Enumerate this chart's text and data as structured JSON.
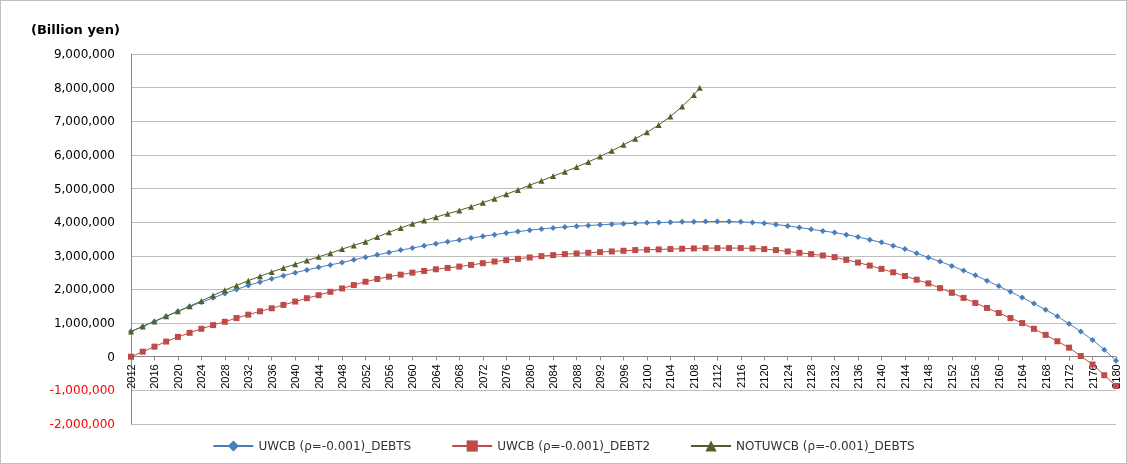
{
  "chart_data": {
    "type": "line",
    "ylabel": "(Billion yen)",
    "xlim": [
      2012,
      2180
    ],
    "xticks": [
      2012,
      2016,
      2020,
      2024,
      2028,
      2032,
      2036,
      2040,
      2044,
      2048,
      2052,
      2056,
      2060,
      2064,
      2068,
      2072,
      2076,
      2080,
      2084,
      2088,
      2092,
      2096,
      2100,
      2104,
      2108,
      2112,
      2116,
      2120,
      2124,
      2128,
      2132,
      2136,
      2140,
      2144,
      2148,
      2152,
      2156,
      2160,
      2164,
      2168,
      2172,
      2176,
      2180
    ],
    "ylim": [
      -2000000,
      9000000
    ],
    "yticks": [
      {
        "value": -2000000,
        "label": "-2,000,000"
      },
      {
        "value": -1000000,
        "label": "-1,000,000"
      },
      {
        "value": 0,
        "label": "0"
      },
      {
        "value": 1000000,
        "label": "1,000,000"
      },
      {
        "value": 2000000,
        "label": "2,000,000"
      },
      {
        "value": 3000000,
        "label": "3,000,000"
      },
      {
        "value": 4000000,
        "label": "4,000,000"
      },
      {
        "value": 5000000,
        "label": "5,000,000"
      },
      {
        "value": 6000000,
        "label": "6,000,000"
      },
      {
        "value": 7000000,
        "label": "7,000,000"
      },
      {
        "value": 8000000,
        "label": "8,000,000"
      },
      {
        "value": 9000000,
        "label": "9,000,000"
      }
    ],
    "grid": "y",
    "legend": "bottom",
    "series": [
      {
        "name": "UWCB (ρ=-0.001)_DEBTS",
        "color": "#4a7ebb",
        "marker": "diamond",
        "x": [
          2012,
          2014,
          2016,
          2018,
          2020,
          2022,
          2024,
          2026,
          2028,
          2030,
          2032,
          2034,
          2036,
          2038,
          2040,
          2042,
          2044,
          2046,
          2048,
          2050,
          2052,
          2054,
          2056,
          2058,
          2060,
          2062,
          2064,
          2066,
          2068,
          2070,
          2072,
          2074,
          2076,
          2078,
          2080,
          2082,
          2084,
          2086,
          2088,
          2090,
          2092,
          2094,
          2096,
          2098,
          2100,
          2102,
          2104,
          2106,
          2108,
          2110,
          2112,
          2114,
          2116,
          2118,
          2120,
          2122,
          2124,
          2126,
          2128,
          2130,
          2132,
          2134,
          2136,
          2138,
          2140,
          2142,
          2144,
          2146,
          2148,
          2150,
          2152,
          2154,
          2156,
          2158,
          2160,
          2162,
          2164,
          2166,
          2168,
          2170,
          2172,
          2174,
          2176,
          2178,
          2180
        ],
        "values": [
          750000,
          900000,
          1050000,
          1200000,
          1350000,
          1490000,
          1620000,
          1750000,
          1880000,
          2000000,
          2120000,
          2220000,
          2320000,
          2410000,
          2500000,
          2580000,
          2660000,
          2730000,
          2800000,
          2880000,
          2960000,
          3030000,
          3100000,
          3170000,
          3230000,
          3300000,
          3360000,
          3420000,
          3470000,
          3530000,
          3580000,
          3630000,
          3680000,
          3720000,
          3760000,
          3800000,
          3830000,
          3860000,
          3880000,
          3900000,
          3920000,
          3940000,
          3950000,
          3970000,
          3980000,
          3990000,
          4000000,
          4010000,
          4010000,
          4020000,
          4020000,
          4020000,
          4010000,
          3990000,
          3970000,
          3930000,
          3890000,
          3840000,
          3790000,
          3740000,
          3690000,
          3630000,
          3560000,
          3480000,
          3400000,
          3300000,
          3200000,
          3080000,
          2950000,
          2830000,
          2700000,
          2560000,
          2420000,
          2260000,
          2100000,
          1930000,
          1760000,
          1580000,
          1400000,
          1200000,
          980000,
          750000,
          500000,
          210000,
          -120000
        ]
      },
      {
        "name": "UWCB (ρ=-0.001)_DEBT2",
        "color": "#be4b48",
        "marker": "square",
        "x": [
          2012,
          2014,
          2016,
          2018,
          2020,
          2022,
          2024,
          2026,
          2028,
          2030,
          2032,
          2034,
          2036,
          2038,
          2040,
          2042,
          2044,
          2046,
          2048,
          2050,
          2052,
          2054,
          2056,
          2058,
          2060,
          2062,
          2064,
          2066,
          2068,
          2070,
          2072,
          2074,
          2076,
          2078,
          2080,
          2082,
          2084,
          2086,
          2088,
          2090,
          2092,
          2094,
          2096,
          2098,
          2100,
          2102,
          2104,
          2106,
          2108,
          2110,
          2112,
          2114,
          2116,
          2118,
          2120,
          2122,
          2124,
          2126,
          2128,
          2130,
          2132,
          2134,
          2136,
          2138,
          2140,
          2142,
          2144,
          2146,
          2148,
          2150,
          2152,
          2154,
          2156,
          2158,
          2160,
          2162,
          2164,
          2166,
          2168,
          2170,
          2172,
          2174,
          2176,
          2178,
          2180
        ],
        "values": [
          0,
          150000,
          300000,
          450000,
          590000,
          710000,
          830000,
          940000,
          1040000,
          1150000,
          1250000,
          1350000,
          1440000,
          1540000,
          1640000,
          1740000,
          1830000,
          1930000,
          2030000,
          2130000,
          2230000,
          2310000,
          2380000,
          2440000,
          2500000,
          2550000,
          2600000,
          2640000,
          2680000,
          2730000,
          2780000,
          2830000,
          2870000,
          2910000,
          2950000,
          2990000,
          3020000,
          3050000,
          3070000,
          3090000,
          3110000,
          3130000,
          3150000,
          3170000,
          3180000,
          3190000,
          3200000,
          3210000,
          3220000,
          3230000,
          3230000,
          3230000,
          3230000,
          3220000,
          3200000,
          3170000,
          3130000,
          3090000,
          3050000,
          3010000,
          2960000,
          2880000,
          2800000,
          2710000,
          2610000,
          2510000,
          2400000,
          2290000,
          2180000,
          2040000,
          1900000,
          1750000,
          1600000,
          1450000,
          1300000,
          1150000,
          1000000,
          830000,
          650000,
          460000,
          270000,
          20000,
          -230000,
          -550000,
          -870000
        ]
      },
      {
        "name": "NOTUWCB (ρ=-0.001)_DEBTS",
        "color": "#4f6228",
        "marker": "triangle",
        "x": [
          2012,
          2014,
          2016,
          2018,
          2020,
          2022,
          2024,
          2026,
          2028,
          2030,
          2032,
          2034,
          2036,
          2038,
          2040,
          2042,
          2044,
          2046,
          2048,
          2050,
          2052,
          2054,
          2056,
          2058,
          2060,
          2062,
          2064,
          2066,
          2068,
          2070,
          2072,
          2074,
          2076,
          2078,
          2080,
          2082,
          2084,
          2086,
          2088,
          2090,
          2092,
          2094,
          2096,
          2098,
          2100,
          2102,
          2104,
          2106,
          2108,
          2109
        ],
        "values": [
          750000,
          900000,
          1050000,
          1200000,
          1350000,
          1500000,
          1660000,
          1820000,
          1980000,
          2120000,
          2260000,
          2390000,
          2520000,
          2640000,
          2750000,
          2860000,
          2970000,
          3080000,
          3200000,
          3310000,
          3420000,
          3560000,
          3700000,
          3830000,
          3950000,
          4050000,
          4150000,
          4250000,
          4350000,
          4460000,
          4580000,
          4700000,
          4830000,
          4960000,
          5100000,
          5230000,
          5370000,
          5500000,
          5640000,
          5790000,
          5950000,
          6120000,
          6300000,
          6480000,
          6670000,
          6890000,
          7140000,
          7440000,
          7780000,
          8000000
        ]
      }
    ]
  }
}
